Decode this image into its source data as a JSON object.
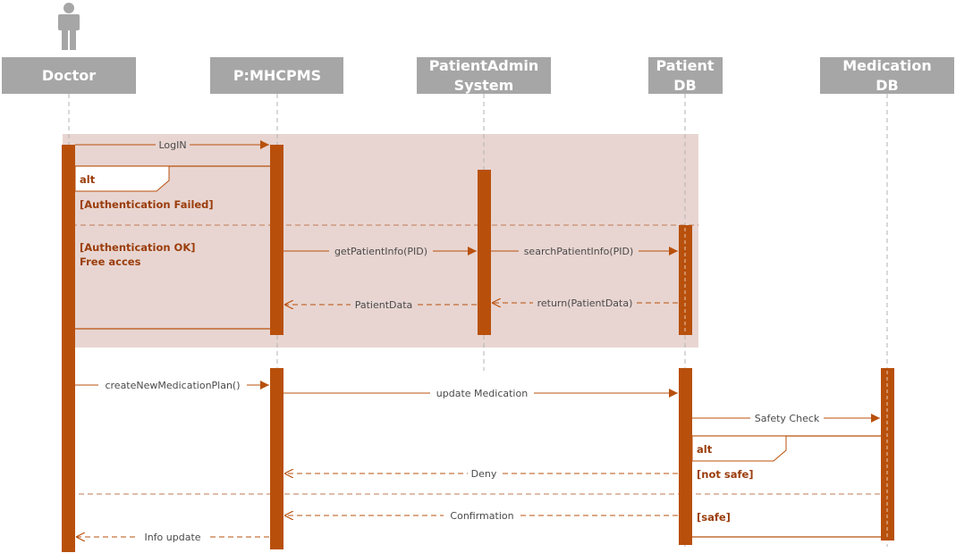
{
  "actor_icon": "person-icon",
  "colors": {
    "header_bg": "#a6a6a6",
    "activation": "#b8500c",
    "arrow": "#b8500c",
    "guard_text": "#9a3d0c",
    "fragment_bg": "#e8d5d1",
    "lifeline": "#b3b3b3"
  },
  "participants": {
    "doctor": {
      "lines": [
        "Doctor"
      ]
    },
    "mhcpms": {
      "lines": [
        "P:MHCPMS"
      ]
    },
    "patient_admin": {
      "lines": [
        "PatientAdmin",
        "System"
      ]
    },
    "patient_db": {
      "lines": [
        "Patient",
        "DB"
      ]
    },
    "medication_db": {
      "lines": [
        "Medication",
        "DB"
      ]
    }
  },
  "fragments": {
    "login_alt": {
      "operator": "alt",
      "guard_failed": "[Authentication Failed]",
      "guard_ok_line1": "[Authentication OK]",
      "guard_ok_line2": "Free acces"
    },
    "safety_alt": {
      "operator": "alt",
      "guard_not_safe": "[not safe]",
      "guard_safe": "[safe]"
    }
  },
  "messages": {
    "login": "LogIN",
    "get_patient_info": "getPatientInfo(PID)",
    "search_patient_info": "searchPatientInfo(PID)",
    "return_patient_data": "return(PatientData)",
    "patient_data": "PatientData",
    "create_plan": "createNewMedicationPlan()",
    "update_medication": "update Medication",
    "safety_check": "Safety Check",
    "deny": "Deny",
    "confirmation": "Confirmation",
    "info_update": "Info update"
  }
}
